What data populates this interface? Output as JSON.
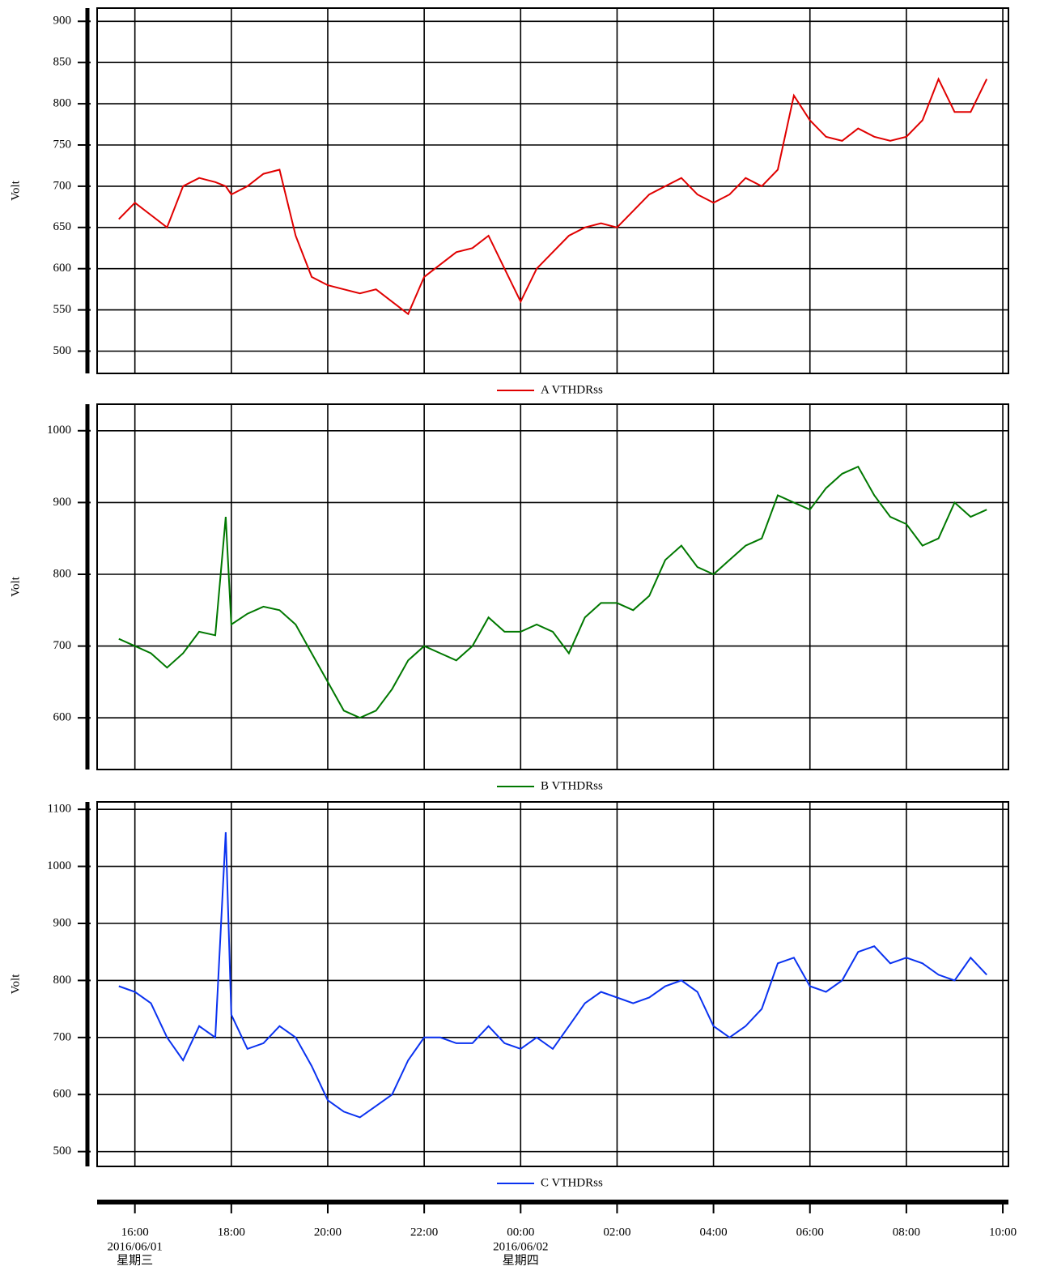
{
  "chart_data": [
    {
      "type": "line",
      "ylabel": "Volt",
      "ylim": [
        473,
        916
      ],
      "yticks": [
        500,
        550,
        600,
        650,
        700,
        750,
        800,
        850,
        900
      ],
      "xlim": [
        "2016-06-01T15:13",
        "2016-06-02T10:07"
      ],
      "x": [
        "2016-06-01T15:40",
        "2016-06-01T16:00",
        "2016-06-01T16:20",
        "2016-06-01T16:40",
        "2016-06-01T17:00",
        "2016-06-01T17:20",
        "2016-06-01T17:40",
        "2016-06-01T17:53",
        "2016-06-01T18:00",
        "2016-06-01T18:20",
        "2016-06-01T18:40",
        "2016-06-01T19:00",
        "2016-06-01T19:20",
        "2016-06-01T19:40",
        "2016-06-01T20:00",
        "2016-06-01T20:20",
        "2016-06-01T20:40",
        "2016-06-01T21:00",
        "2016-06-01T21:20",
        "2016-06-01T21:40",
        "2016-06-01T22:00",
        "2016-06-01T22:20",
        "2016-06-01T22:40",
        "2016-06-01T23:00",
        "2016-06-01T23:20",
        "2016-06-01T23:40",
        "2016-06-02T00:00",
        "2016-06-02T00:20",
        "2016-06-02T00:40",
        "2016-06-02T01:00",
        "2016-06-02T01:20",
        "2016-06-02T01:40",
        "2016-06-02T02:00",
        "2016-06-02T02:20",
        "2016-06-02T02:40",
        "2016-06-02T03:00",
        "2016-06-02T03:20",
        "2016-06-02T03:40",
        "2016-06-02T04:00",
        "2016-06-02T04:20",
        "2016-06-02T04:40",
        "2016-06-02T05:00",
        "2016-06-02T05:20",
        "2016-06-02T05:40",
        "2016-06-02T06:00",
        "2016-06-02T06:20",
        "2016-06-02T06:40",
        "2016-06-02T07:00",
        "2016-06-02T07:20",
        "2016-06-02T07:40",
        "2016-06-02T08:00",
        "2016-06-02T08:20",
        "2016-06-02T08:40",
        "2016-06-02T09:00",
        "2016-06-02T09:20",
        "2016-06-02T09:40"
      ],
      "series": [
        {
          "name": "A VTHDRss",
          "color": "#e00000",
          "values": [
            660,
            680,
            665,
            650,
            700,
            710,
            705,
            700,
            690,
            700,
            715,
            720,
            640,
            590,
            580,
            575,
            570,
            575,
            560,
            545,
            590,
            605,
            620,
            625,
            640,
            600,
            560,
            600,
            620,
            640,
            650,
            655,
            650,
            670,
            690,
            700,
            710,
            690,
            680,
            690,
            710,
            700,
            720,
            810,
            780,
            760,
            755,
            770,
            760,
            755,
            760,
            780,
            830,
            790,
            790,
            830
          ]
        }
      ]
    },
    {
      "type": "line",
      "ylabel": "Volt",
      "ylim": [
        528,
        1037
      ],
      "yticks": [
        600,
        700,
        800,
        900,
        1000
      ],
      "xlim": [
        "2016-06-01T15:13",
        "2016-06-02T10:07"
      ],
      "x": [
        "2016-06-01T15:40",
        "2016-06-01T16:00",
        "2016-06-01T16:20",
        "2016-06-01T16:40",
        "2016-06-01T17:00",
        "2016-06-01T17:20",
        "2016-06-01T17:40",
        "2016-06-01T17:53",
        "2016-06-01T18:00",
        "2016-06-01T18:20",
        "2016-06-01T18:40",
        "2016-06-01T19:00",
        "2016-06-01T19:20",
        "2016-06-01T19:40",
        "2016-06-01T20:00",
        "2016-06-01T20:20",
        "2016-06-01T20:40",
        "2016-06-01T21:00",
        "2016-06-01T21:20",
        "2016-06-01T21:40",
        "2016-06-01T22:00",
        "2016-06-01T22:20",
        "2016-06-01T22:40",
        "2016-06-01T23:00",
        "2016-06-01T23:20",
        "2016-06-01T23:40",
        "2016-06-02T00:00",
        "2016-06-02T00:20",
        "2016-06-02T00:40",
        "2016-06-02T01:00",
        "2016-06-02T01:20",
        "2016-06-02T01:40",
        "2016-06-02T02:00",
        "2016-06-02T02:20",
        "2016-06-02T02:40",
        "2016-06-02T03:00",
        "2016-06-02T03:20",
        "2016-06-02T03:40",
        "2016-06-02T04:00",
        "2016-06-02T04:20",
        "2016-06-02T04:40",
        "2016-06-02T05:00",
        "2016-06-02T05:20",
        "2016-06-02T05:40",
        "2016-06-02T06:00",
        "2016-06-02T06:20",
        "2016-06-02T06:40",
        "2016-06-02T07:00",
        "2016-06-02T07:20",
        "2016-06-02T07:40",
        "2016-06-02T08:00",
        "2016-06-02T08:20",
        "2016-06-02T08:40",
        "2016-06-02T09:00",
        "2016-06-02T09:20",
        "2016-06-02T09:40"
      ],
      "series": [
        {
          "name": "B VTHDRss",
          "color": "#007800",
          "values": [
            710,
            700,
            690,
            670,
            690,
            720,
            715,
            880,
            730,
            745,
            755,
            750,
            730,
            690,
            650,
            610,
            600,
            610,
            640,
            680,
            700,
            690,
            680,
            700,
            740,
            720,
            720,
            730,
            720,
            690,
            740,
            760,
            760,
            750,
            770,
            820,
            840,
            810,
            800,
            820,
            840,
            850,
            910,
            900,
            890,
            920,
            940,
            950,
            910,
            880,
            870,
            840,
            850,
            900,
            880,
            890
          ]
        }
      ]
    },
    {
      "type": "line",
      "ylabel": "Volt",
      "ylim": [
        474,
        1113
      ],
      "yticks": [
        500,
        600,
        700,
        800,
        900,
        1000,
        1100
      ],
      "xlim": [
        "2016-06-01T15:13",
        "2016-06-02T10:07"
      ],
      "xticks": [
        {
          "value": "2016-06-01T16:00",
          "label": "16:00"
        },
        {
          "value": "2016-06-01T18:00",
          "label": "18:00"
        },
        {
          "value": "2016-06-01T20:00",
          "label": "20:00"
        },
        {
          "value": "2016-06-01T22:00",
          "label": "22:00"
        },
        {
          "value": "2016-06-02T00:00",
          "label": "00:00"
        },
        {
          "value": "2016-06-02T02:00",
          "label": "02:00"
        },
        {
          "value": "2016-06-02T04:00",
          "label": "04:00"
        },
        {
          "value": "2016-06-02T06:00",
          "label": "06:00"
        },
        {
          "value": "2016-06-02T08:00",
          "label": "08:00"
        },
        {
          "value": "2016-06-02T10:00",
          "label": "10:00"
        }
      ],
      "xtick_dates": [
        {
          "value": "2016-06-01T16:00",
          "label": "2016/06/01",
          "weekday": "星期三"
        },
        {
          "value": "2016-06-02T00:00",
          "label": "2016/06/02",
          "weekday": "星期四"
        }
      ],
      "x": [
        "2016-06-01T15:40",
        "2016-06-01T16:00",
        "2016-06-01T16:20",
        "2016-06-01T16:40",
        "2016-06-01T17:00",
        "2016-06-01T17:20",
        "2016-06-01T17:40",
        "2016-06-01T17:53",
        "2016-06-01T18:00",
        "2016-06-01T18:20",
        "2016-06-01T18:40",
        "2016-06-01T19:00",
        "2016-06-01T19:20",
        "2016-06-01T19:40",
        "2016-06-01T20:00",
        "2016-06-01T20:20",
        "2016-06-01T20:40",
        "2016-06-01T21:00",
        "2016-06-01T21:20",
        "2016-06-01T21:40",
        "2016-06-01T22:00",
        "2016-06-01T22:20",
        "2016-06-01T22:40",
        "2016-06-01T23:00",
        "2016-06-01T23:20",
        "2016-06-01T23:40",
        "2016-06-02T00:00",
        "2016-06-02T00:20",
        "2016-06-02T00:40",
        "2016-06-02T01:00",
        "2016-06-02T01:20",
        "2016-06-02T01:40",
        "2016-06-02T02:00",
        "2016-06-02T02:20",
        "2016-06-02T02:40",
        "2016-06-02T03:00",
        "2016-06-02T03:20",
        "2016-06-02T03:40",
        "2016-06-02T04:00",
        "2016-06-02T04:20",
        "2016-06-02T04:40",
        "2016-06-02T05:00",
        "2016-06-02T05:20",
        "2016-06-02T05:40",
        "2016-06-02T06:00",
        "2016-06-02T06:20",
        "2016-06-02T06:40",
        "2016-06-02T07:00",
        "2016-06-02T07:20",
        "2016-06-02T07:40",
        "2016-06-02T08:00",
        "2016-06-02T08:20",
        "2016-06-02T08:40",
        "2016-06-02T09:00",
        "2016-06-02T09:20",
        "2016-06-02T09:40"
      ],
      "series": [
        {
          "name": "C VTHDRss",
          "color": "#0a32f0",
          "values": [
            790,
            780,
            760,
            700,
            660,
            720,
            700,
            1060,
            740,
            680,
            690,
            720,
            700,
            650,
            590,
            570,
            560,
            580,
            600,
            660,
            700,
            700,
            690,
            690,
            720,
            690,
            680,
            700,
            680,
            720,
            760,
            780,
            770,
            760,
            770,
            790,
            800,
            780,
            720,
            700,
            720,
            750,
            830,
            840,
            790,
            780,
            800,
            850,
            860,
            830,
            840,
            830,
            810,
            800,
            840,
            810
          ]
        }
      ]
    }
  ]
}
